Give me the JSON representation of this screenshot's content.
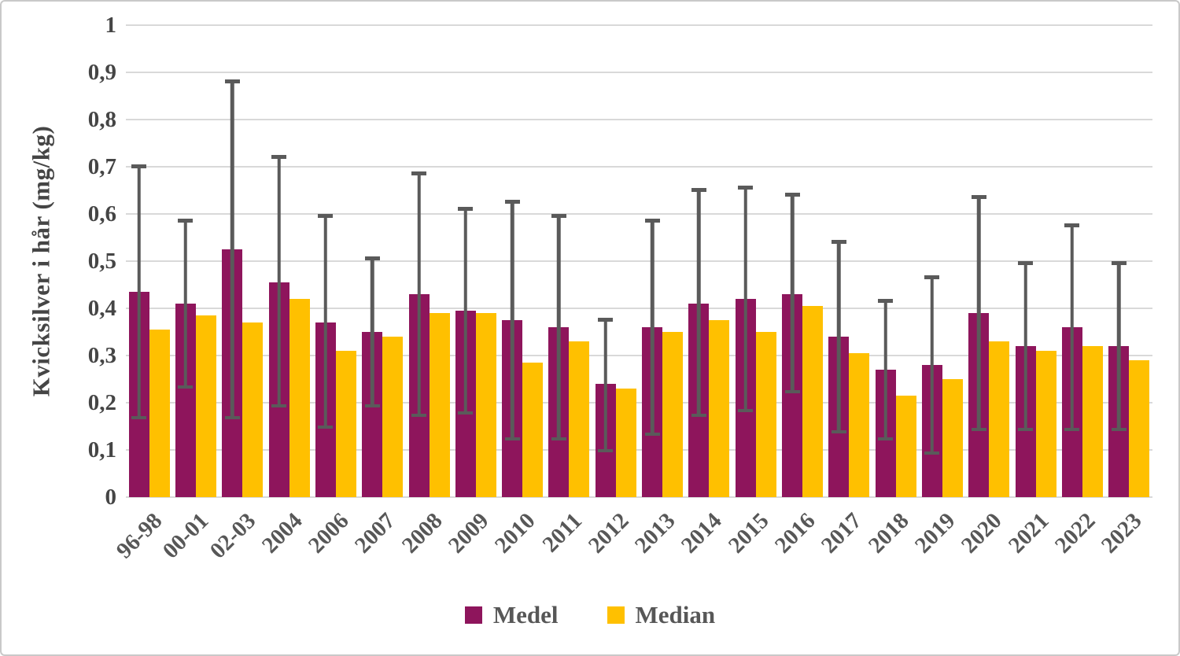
{
  "chart_data": {
    "type": "bar",
    "title": "",
    "xlabel": "",
    "ylabel": "Kvicksilver i hår (mg/kg)",
    "ylim": [
      0,
      1
    ],
    "ytick_step": 0.1,
    "ytick_labels_bottom_up": [
      "0",
      "0,1",
      "0,2",
      "0,3",
      "0,4",
      "0,5",
      "0,6",
      "0,7",
      "0,8",
      "0,9",
      "1"
    ],
    "grid": true,
    "legend_position": "bottom-center",
    "categories": [
      "96-98",
      "00-01",
      "02-03",
      "2004",
      "2006",
      "2007",
      "2008",
      "2009",
      "2010",
      "2011",
      "2012",
      "2013",
      "2014",
      "2015",
      "2016",
      "2017",
      "2018",
      "2019",
      "2020",
      "2021",
      "2022",
      "2023"
    ],
    "series": [
      {
        "name": "Medel",
        "color": "#8E155C",
        "values": [
          0.435,
          0.41,
          0.525,
          0.455,
          0.37,
          0.35,
          0.43,
          0.395,
          0.375,
          0.36,
          0.24,
          0.36,
          0.41,
          0.42,
          0.43,
          0.34,
          0.27,
          0.28,
          0.39,
          0.32,
          0.36,
          0.32
        ],
        "error_low": [
          0.165,
          0.23,
          0.165,
          0.19,
          0.145,
          0.19,
          0.17,
          0.175,
          0.12,
          0.12,
          0.095,
          0.13,
          0.17,
          0.18,
          0.22,
          0.135,
          0.12,
          0.09,
          0.14,
          0.14,
          0.14,
          0.14
        ],
        "error_high": [
          0.705,
          0.59,
          0.885,
          0.725,
          0.6,
          0.51,
          0.69,
          0.615,
          0.63,
          0.6,
          0.38,
          0.59,
          0.655,
          0.66,
          0.645,
          0.545,
          0.42,
          0.47,
          0.64,
          0.5,
          0.58,
          0.5
        ]
      },
      {
        "name": "Median",
        "color": "#FFC000",
        "values": [
          0.355,
          0.385,
          0.37,
          0.42,
          0.31,
          0.34,
          0.39,
          0.39,
          0.285,
          0.33,
          0.23,
          0.35,
          0.375,
          0.35,
          0.405,
          0.305,
          0.215,
          0.25,
          0.33,
          0.31,
          0.32,
          0.29
        ]
      }
    ],
    "error_bar_color": "#5a5a5a",
    "gridline_color": "#d9d9d9"
  },
  "legend": {
    "items": [
      {
        "label": "Medel",
        "color": "#8E155C"
      },
      {
        "label": "Median",
        "color": "#FFC000"
      }
    ]
  }
}
